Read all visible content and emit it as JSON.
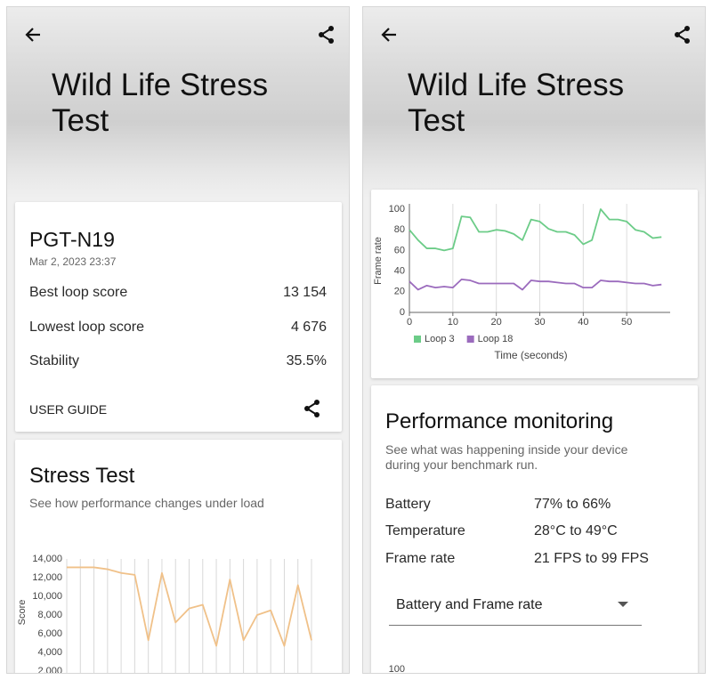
{
  "screens": [
    {
      "title": "Wild Life Stress Test",
      "device": "PGT-N19",
      "date": "Mar 2, 2023 23:37",
      "rows": [
        [
          "Best loop score",
          "13 154"
        ],
        [
          "Lowest loop score",
          "4 676"
        ],
        [
          "Stability",
          "35.5%"
        ]
      ],
      "link": "USER GUIDE",
      "section": {
        "title": "Stress Test",
        "subtitle": "See how performance changes under load"
      }
    },
    {
      "title": "Wild Life Stress Test",
      "section": {
        "title": "Performance monitoring",
        "subtitle": "See what was happening inside your device during your benchmark run."
      },
      "rows": [
        [
          "Battery",
          "77% to 66%"
        ],
        [
          "Temperature",
          "28°C to 49°C"
        ],
        [
          "Frame rate",
          "21 FPS to 99 FPS"
        ]
      ],
      "dropdown": "Battery and Frame rate"
    }
  ],
  "chart_data": [
    {
      "type": "line",
      "y_label": "Score",
      "color": "#f0c189",
      "grid": "x",
      "values": [
        13100,
        13100,
        13100,
        12900,
        12500,
        12300,
        5300,
        12500,
        7200,
        8700,
        9100,
        4700,
        11800,
        5300,
        8000,
        8500,
        4700,
        11200,
        5300
      ],
      "ylim": [
        0,
        14000
      ],
      "yticks": [
        {
          "value": 2000,
          "label": "2,000"
        },
        {
          "value": 4000,
          "label": "4,000"
        },
        {
          "value": 6000,
          "label": "6,000"
        },
        {
          "value": 8000,
          "label": "8,000"
        },
        {
          "value": 10000,
          "label": "10,000"
        },
        {
          "value": 12000,
          "label": "12,000"
        },
        {
          "value": 14000,
          "label": "14,000"
        }
      ]
    },
    {
      "type": "line",
      "y_label": "Frame rate",
      "x_label": "Time (seconds)",
      "grid": "x",
      "legend": "bottom",
      "x": [
        0,
        2,
        4,
        6,
        8,
        10,
        12,
        14,
        16,
        18,
        20,
        22,
        24,
        26,
        28,
        30,
        32,
        34,
        36,
        38,
        40,
        42,
        44,
        46,
        48,
        50,
        52,
        54,
        56,
        58
      ],
      "series": [
        {
          "name": "Loop 3",
          "color": "#6ccc88",
          "values": [
            80,
            70,
            62,
            62,
            60,
            62,
            93,
            92,
            78,
            78,
            80,
            79,
            76,
            70,
            90,
            88,
            81,
            78,
            78,
            75,
            66,
            70,
            100,
            90,
            90,
            88,
            80,
            78,
            72,
            73
          ]
        },
        {
          "name": "Loop 18",
          "color": "#9b6bbd",
          "values": [
            30,
            22,
            26,
            24,
            25,
            24,
            32,
            31,
            28,
            28,
            28,
            28,
            28,
            22,
            31,
            30,
            30,
            29,
            28,
            28,
            24,
            24,
            31,
            30,
            30,
            29,
            28,
            28,
            26,
            27
          ]
        }
      ],
      "xlim": [
        0,
        60
      ],
      "xticks": [
        0,
        10,
        20,
        30,
        40,
        50
      ],
      "ylim": [
        0,
        100
      ],
      "yticks": [
        0,
        20,
        40,
        60,
        80,
        100
      ]
    },
    {
      "type": "line",
      "ylim": [
        0,
        100
      ],
      "yticks": [
        100
      ]
    }
  ]
}
